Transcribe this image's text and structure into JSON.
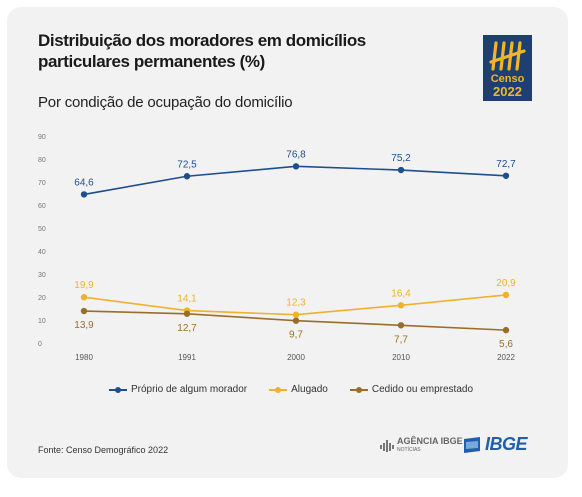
{
  "header": {
    "title": "Distribuição dos moradores em domicílios particulares permanentes (%)",
    "subtitle": "Por condição de ocupação do domicílio"
  },
  "logo": {
    "word": "Censo",
    "year": "2022"
  },
  "colors": {
    "series_1": "#1f4e8c",
    "series_2": "#f0b22b",
    "series_3": "#9a6e2a",
    "card_background": "#f2f2f2",
    "ibge_blue": "#1f5fae"
  },
  "chart_data": {
    "type": "line",
    "x": [
      "1980",
      "1991",
      "2000",
      "2010",
      "2022"
    ],
    "ylim": [
      0,
      90
    ],
    "yticks": [
      0,
      10,
      20,
      30,
      40,
      50,
      60,
      70,
      80,
      90
    ],
    "grid": false,
    "legend_position": "bottom",
    "series": [
      {
        "name": "Próprio de algum morador",
        "values": [
          64.6,
          72.5,
          76.8,
          75.2,
          72.7
        ],
        "labels": [
          "64,6",
          "72,5",
          "76,8",
          "75,2",
          "72,7"
        ],
        "label_position": "above"
      },
      {
        "name": "Alugado",
        "values": [
          19.9,
          14.1,
          12.3,
          16.4,
          20.9
        ],
        "labels": [
          "19,9",
          "14,1",
          "12,3",
          "16,4",
          "20,9"
        ],
        "label_position": "above"
      },
      {
        "name": "Cedido ou emprestado",
        "values": [
          13.9,
          12.7,
          9.7,
          7.7,
          5.6
        ],
        "labels": [
          "13,9",
          "12,7",
          "9,7",
          "7,7",
          "5,6"
        ],
        "label_position": "below"
      }
    ]
  },
  "footer": {
    "source": "Fonte: Censo Demográfico 2022",
    "agencia_name": "AGÊNCIA IBGE",
    "agencia_sub": "NOTÍCIAS",
    "ibge_logo": "IBGE"
  }
}
